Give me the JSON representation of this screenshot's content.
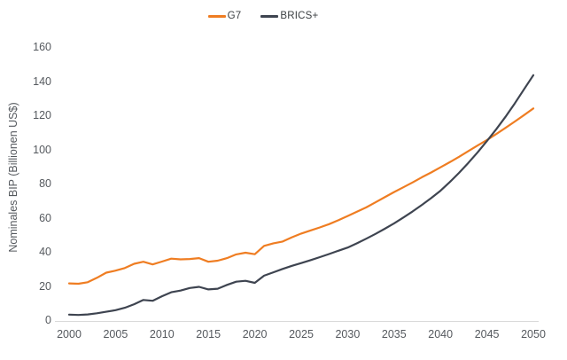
{
  "legend": {
    "items": [
      {
        "label": "G7"
      },
      {
        "label": "BRICS+"
      }
    ]
  },
  "chart_data": {
    "type": "line",
    "title": "",
    "xlabel": "",
    "ylabel": "Nominales BIP (Billionen US$)",
    "ylim": [
      0,
      160
    ],
    "yticks": [
      0,
      20,
      40,
      60,
      80,
      100,
      120,
      140,
      160
    ],
    "xticks": [
      2000,
      2005,
      2010,
      2015,
      2020,
      2025,
      2030,
      2035,
      2040,
      2045,
      2050
    ],
    "grid": false,
    "legend_position": "top-center",
    "background_color": "#ffffff",
    "axis_line_color": "#d9d9d9",
    "tick_text_color": "#55595e",
    "x": [
      2000,
      2001,
      2002,
      2003,
      2004,
      2005,
      2006,
      2007,
      2008,
      2009,
      2010,
      2011,
      2012,
      2013,
      2014,
      2015,
      2016,
      2017,
      2018,
      2019,
      2020,
      2021,
      2022,
      2023,
      2024,
      2025,
      2026,
      2027,
      2028,
      2029,
      2030,
      2031,
      2032,
      2033,
      2034,
      2035,
      2036,
      2037,
      2038,
      2039,
      2040,
      2041,
      2042,
      2043,
      2044,
      2045,
      2046,
      2047,
      2048,
      2049,
      2050
    ],
    "series": [
      {
        "name": "G7",
        "color": "#ef7d22",
        "values": [
          21.5,
          21.3,
          22.2,
          24.8,
          27.8,
          29.0,
          30.5,
          33.0,
          34.2,
          32.6,
          34.3,
          36.0,
          35.6,
          35.8,
          36.3,
          34.2,
          34.8,
          36.3,
          38.5,
          39.5,
          38.6,
          43.5,
          45.0,
          46.0,
          48.5,
          50.7,
          52.5,
          54.3,
          56.2,
          58.5,
          61.0,
          63.5,
          66.0,
          69.0,
          72.0,
          75.0,
          77.8,
          80.7,
          83.7,
          86.5,
          89.5,
          92.5,
          95.7,
          99.0,
          102.3,
          105.5,
          109.0,
          112.6,
          116.3,
          120.1,
          124.0
        ]
      },
      {
        "name": "BRICS+",
        "color": "#3e4450",
        "values": [
          3.2,
          3.0,
          3.3,
          4.0,
          4.9,
          5.8,
          7.2,
          9.3,
          11.8,
          11.3,
          14.0,
          16.3,
          17.3,
          18.8,
          19.5,
          18.0,
          18.4,
          20.6,
          22.5,
          23.0,
          21.8,
          26.0,
          28.0,
          30.0,
          31.8,
          33.4,
          35.1,
          36.9,
          38.7,
          40.6,
          42.5,
          45.0,
          47.7,
          50.5,
          53.5,
          56.7,
          60.1,
          63.7,
          67.5,
          71.5,
          75.8,
          80.9,
          86.3,
          92.1,
          98.3,
          104.9,
          111.8,
          119.1,
          126.9,
          135.2,
          143.5
        ]
      }
    ]
  }
}
